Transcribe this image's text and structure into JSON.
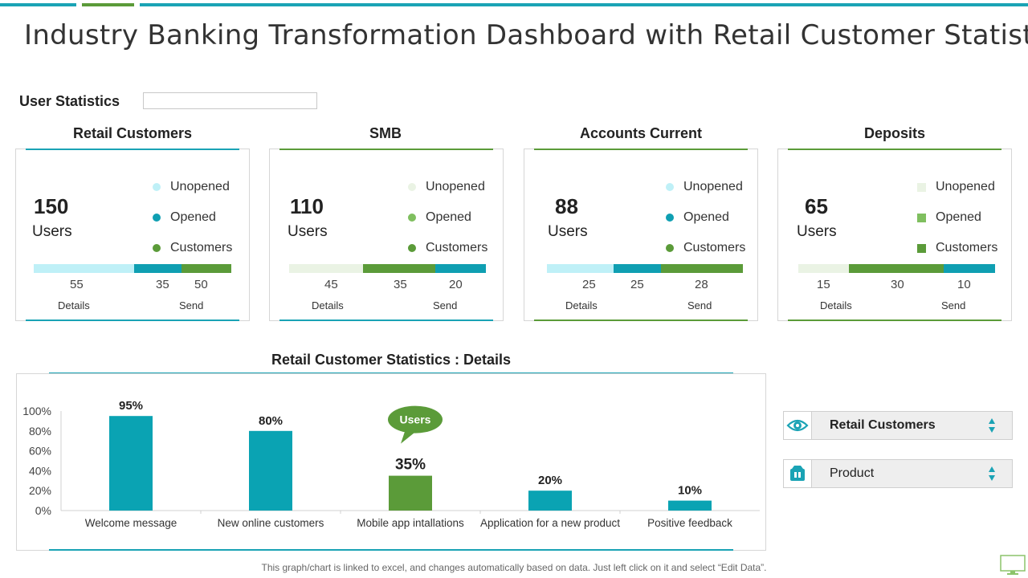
{
  "title": "Industry Banking Transformation Dashboard with Retail Customer Statistics",
  "section_label": "User Statistics",
  "colors": {
    "teal": "#0f9fb2",
    "green": "#5b9b39",
    "light_cyan": "#bff0f7",
    "light_green": "#eaf3e4",
    "mid_green": "#7fbf5f"
  },
  "cards": [
    {
      "title": "Retail Customers",
      "count": "150",
      "unit": "Users",
      "legend": [
        "Unopened",
        "Opened",
        "Customers"
      ],
      "values": [
        "55",
        "35",
        "50"
      ],
      "details_label": "Details",
      "send_label": "Send"
    },
    {
      "title": "SMB",
      "count": "110",
      "unit": "Users",
      "legend": [
        "Unopened",
        "Opened",
        "Customers"
      ],
      "values": [
        "45",
        "35",
        "20"
      ],
      "details_label": "Details",
      "send_label": "Send"
    },
    {
      "title": "Accounts Current",
      "count": "88",
      "unit": "Users",
      "legend": [
        "Unopened",
        "Opened",
        "Customers"
      ],
      "values": [
        "25",
        "25",
        "28"
      ],
      "details_label": "Details",
      "send_label": "Send"
    },
    {
      "title": "Deposits",
      "count": "65",
      "unit": "Users",
      "legend": [
        "Unopened",
        "Opened",
        "Customers"
      ],
      "values": [
        "15",
        "30",
        "10"
      ],
      "details_label": "Details",
      "send_label": "Send"
    }
  ],
  "chart_title": "Retail Customer Statistics : Details",
  "chart_data": {
    "type": "bar",
    "title": "Retail Customer Statistics : Details",
    "categories": [
      "Welcome message",
      "New online customers",
      "Mobile app intallations",
      "Application for a new product",
      "Positive feedback"
    ],
    "values": [
      95,
      80,
      35,
      20,
      10
    ],
    "value_labels": [
      "95%",
      "80%",
      "35%",
      "20%",
      "10%"
    ],
    "highlight_index": 2,
    "highlight_callout": "Users",
    "yticks": [
      "0%",
      "20%",
      "40%",
      "60%",
      "80%",
      "100%"
    ],
    "ylim": [
      0,
      100
    ]
  },
  "selectors": [
    {
      "label": "Retail Customers",
      "icon": "eye-icon"
    },
    {
      "label": "Product",
      "icon": "box-icon"
    }
  ],
  "footer": "This graph/chart is linked to excel, and changes automatically based on data. Just left click on it and select “Edit Data”."
}
